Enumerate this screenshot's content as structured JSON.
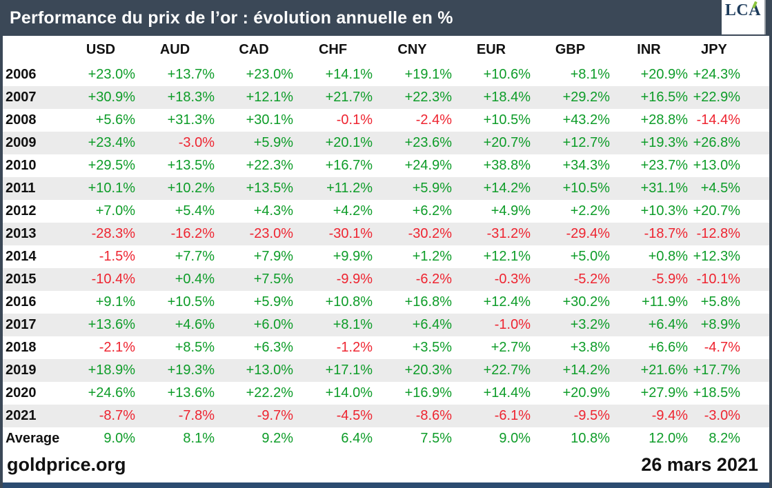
{
  "header": {
    "title": "Performance du prix de l’or : évolution annuelle en %",
    "logo_text": "LCA"
  },
  "footer": {
    "source": "goldprice.org",
    "date": "26 mars 2021"
  },
  "colors": {
    "positive": "#0d9c28",
    "negative": "#ee2430",
    "header_bg": "#3b4857",
    "bottom_bar": "#2b4b70",
    "row_stripe": "#ebebeb",
    "logo_navy": "#1e3c5c",
    "logo_accent": "#8dc63f"
  },
  "chart_data": {
    "type": "table",
    "title": "Performance du prix de l’or : évolution annuelle en %",
    "columns": [
      "USD",
      "AUD",
      "CAD",
      "CHF",
      "CNY",
      "EUR",
      "GBP",
      "INR",
      "JPY"
    ],
    "rows": [
      {
        "label": "2006",
        "values": [
          "+23.0%",
          "+13.7%",
          "+23.0%",
          "+14.1%",
          "+19.1%",
          "+10.6%",
          "+8.1%",
          "+20.9%",
          "+24.3%"
        ]
      },
      {
        "label": "2007",
        "values": [
          "+30.9%",
          "+18.3%",
          "+12.1%",
          "+21.7%",
          "+22.3%",
          "+18.4%",
          "+29.2%",
          "+16.5%",
          "+22.9%"
        ]
      },
      {
        "label": "2008",
        "values": [
          "+5.6%",
          "+31.3%",
          "+30.1%",
          "-0.1%",
          "-2.4%",
          "+10.5%",
          "+43.2%",
          "+28.8%",
          "-14.4%"
        ]
      },
      {
        "label": "2009",
        "values": [
          "+23.4%",
          "-3.0%",
          "+5.9%",
          "+20.1%",
          "+23.6%",
          "+20.7%",
          "+12.7%",
          "+19.3%",
          "+26.8%"
        ]
      },
      {
        "label": "2010",
        "values": [
          "+29.5%",
          "+13.5%",
          "+22.3%",
          "+16.7%",
          "+24.9%",
          "+38.8%",
          "+34.3%",
          "+23.7%",
          "+13.0%"
        ]
      },
      {
        "label": "2011",
        "values": [
          "+10.1%",
          "+10.2%",
          "+13.5%",
          "+11.2%",
          "+5.9%",
          "+14.2%",
          "+10.5%",
          "+31.1%",
          "+4.5%"
        ]
      },
      {
        "label": "2012",
        "values": [
          "+7.0%",
          "+5.4%",
          "+4.3%",
          "+4.2%",
          "+6.2%",
          "+4.9%",
          "+2.2%",
          "+10.3%",
          "+20.7%"
        ]
      },
      {
        "label": "2013",
        "values": [
          "-28.3%",
          "-16.2%",
          "-23.0%",
          "-30.1%",
          "-30.2%",
          "-31.2%",
          "-29.4%",
          "-18.7%",
          "-12.8%"
        ]
      },
      {
        "label": "2014",
        "values": [
          "-1.5%",
          "+7.7%",
          "+7.9%",
          "+9.9%",
          "+1.2%",
          "+12.1%",
          "+5.0%",
          "+0.8%",
          "+12.3%"
        ]
      },
      {
        "label": "2015",
        "values": [
          "-10.4%",
          "+0.4%",
          "+7.5%",
          "-9.9%",
          "-6.2%",
          "-0.3%",
          "-5.2%",
          "-5.9%",
          "-10.1%"
        ]
      },
      {
        "label": "2016",
        "values": [
          "+9.1%",
          "+10.5%",
          "+5.9%",
          "+10.8%",
          "+16.8%",
          "+12.4%",
          "+30.2%",
          "+11.9%",
          "+5.8%"
        ]
      },
      {
        "label": "2017",
        "values": [
          "+13.6%",
          "+4.6%",
          "+6.0%",
          "+8.1%",
          "+6.4%",
          "-1.0%",
          "+3.2%",
          "+6.4%",
          "+8.9%"
        ]
      },
      {
        "label": "2018",
        "values": [
          "-2.1%",
          "+8.5%",
          "+6.3%",
          "-1.2%",
          "+3.5%",
          "+2.7%",
          "+3.8%",
          "+6.6%",
          "-4.7%"
        ]
      },
      {
        "label": "2019",
        "values": [
          "+18.9%",
          "+19.3%",
          "+13.0%",
          "+17.1%",
          "+20.3%",
          "+22.7%",
          "+14.2%",
          "+21.6%",
          "+17.7%"
        ]
      },
      {
        "label": "2020",
        "values": [
          "+24.6%",
          "+13.6%",
          "+22.2%",
          "+14.0%",
          "+16.9%",
          "+14.4%",
          "+20.9%",
          "+27.9%",
          "+18.5%"
        ]
      },
      {
        "label": "2021",
        "values": [
          "-8.7%",
          "-7.8%",
          "-9.7%",
          "-4.5%",
          "-8.6%",
          "-6.1%",
          "-9.5%",
          "-9.4%",
          "-3.0%"
        ]
      },
      {
        "label": "Average",
        "values": [
          "9.0%",
          "8.1%",
          "9.2%",
          "6.4%",
          "7.5%",
          "9.0%",
          "10.8%",
          "12.0%",
          "8.2%"
        ]
      }
    ],
    "legend": "green = positive annual change, red = negative annual change",
    "source": "goldprice.org",
    "date": "26 mars 2021"
  }
}
